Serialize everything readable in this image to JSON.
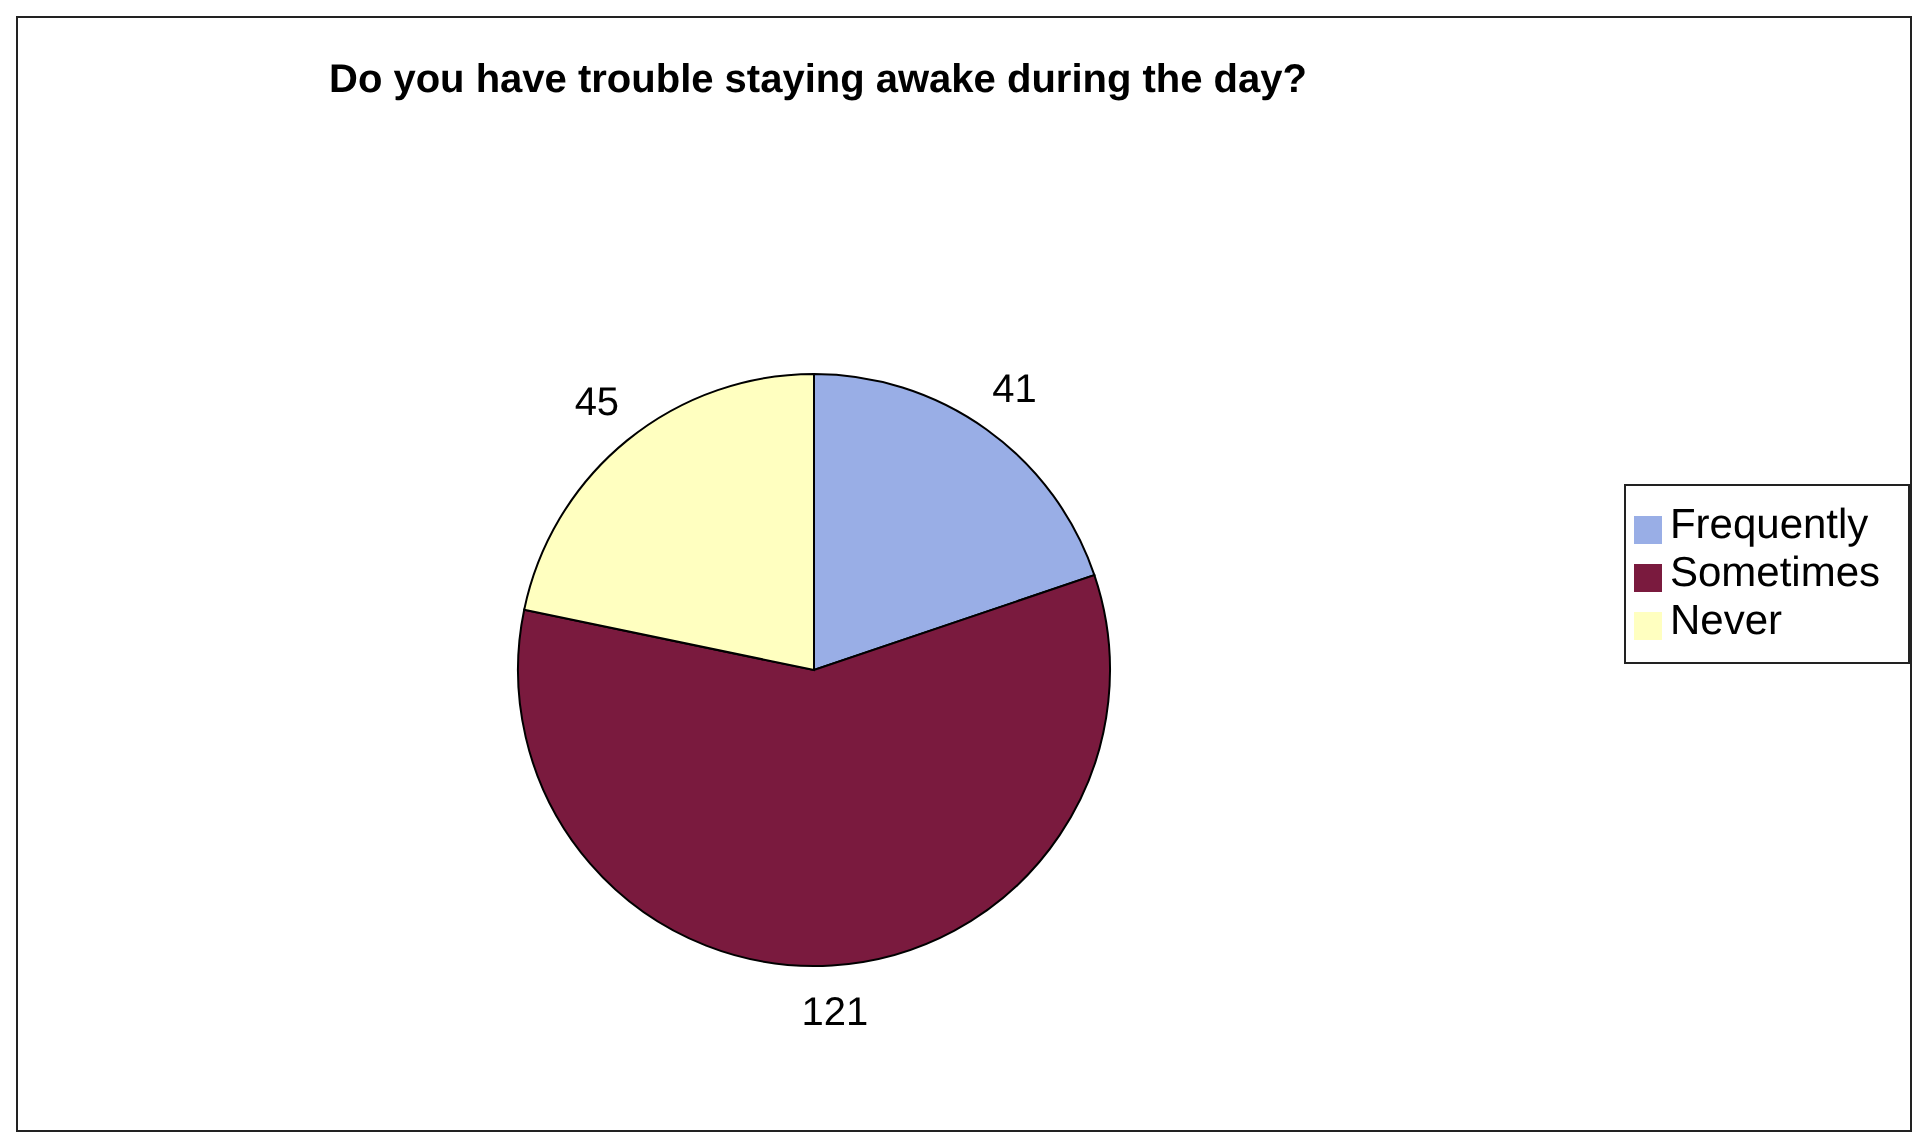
{
  "chart_data": {
    "type": "pie",
    "title": "Do you have trouble staying awake during the day?",
    "categories": [
      "Frequently",
      "Sometimes",
      "Never"
    ],
    "values": [
      41,
      121,
      45
    ],
    "colors": [
      "#99aee6",
      "#7a1a3e",
      "#ffffc0"
    ],
    "data_labels": true,
    "legend": "right"
  }
}
